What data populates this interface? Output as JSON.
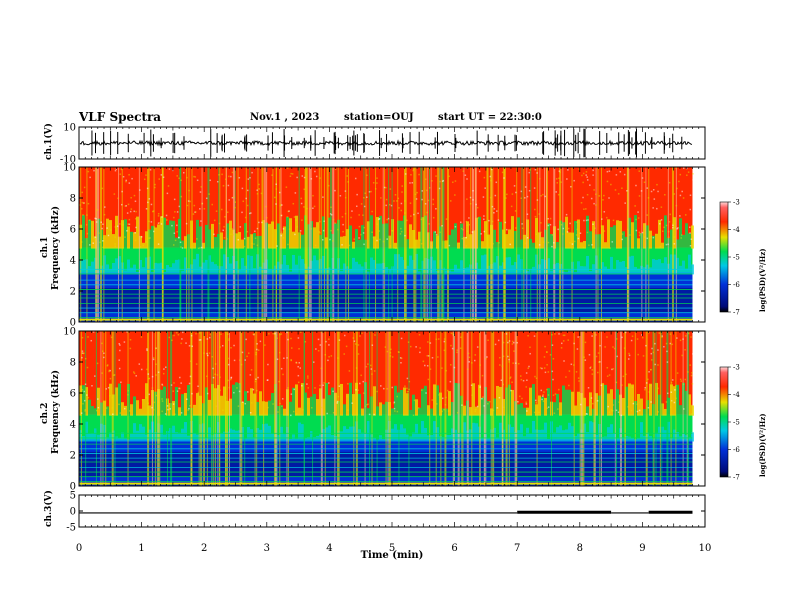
{
  "header": {
    "title": "VLF Spectra",
    "date": "Nov.1 , 2023",
    "station": "station=OUJ",
    "start": "start UT = 22:30:0"
  },
  "colors": {
    "red": "#ff2a00",
    "yellow": "#e8e000",
    "green": "#00dc50",
    "cyan": "#00c8e6",
    "blue": "#0030d8",
    "navy": "#000a78",
    "trace": "#000000"
  },
  "chart_data": [
    {
      "id": "ch1-waveform",
      "type": "line",
      "ylabel": "ch.1(V)",
      "xlim": [
        0,
        10
      ],
      "ylim": [
        -10,
        10
      ],
      "yticks": [
        "10",
        "-10"
      ],
      "trace_level_v": 0,
      "trace_spread_v": 2.5,
      "trace_end_min": 9.8
    },
    {
      "id": "ch1-spectrogram",
      "type": "heatmap",
      "ylabel": [
        "ch.1",
        "Frequency (kHz)"
      ],
      "xlim": [
        0,
        10
      ],
      "ylim": [
        0,
        10
      ],
      "yticks": [
        "0",
        "2",
        "4",
        "6",
        "8",
        "10"
      ],
      "data_end_min": 9.8,
      "colorbar": {
        "label": "log(PSD)(V²/Hz)",
        "ticks": [
          "-3",
          "-4",
          "-5",
          "-6",
          "-7"
        ],
        "range": [
          -7,
          -3
        ]
      },
      "approx_band_khz": {
        "blue_top": 3.2,
        "green_top": 4.8
      }
    },
    {
      "id": "ch2-spectrogram",
      "type": "heatmap",
      "ylabel": [
        "ch.2",
        "Frequency (kHz)"
      ],
      "xlim": [
        0,
        10
      ],
      "ylim": [
        0,
        10
      ],
      "yticks": [
        "0",
        "2",
        "4",
        "6",
        "8",
        "10"
      ],
      "data_end_min": 9.8,
      "colorbar": {
        "label": "log(PSD)(V²/Hz)",
        "ticks": [
          "-3",
          "-4",
          "-5",
          "-6",
          "-7"
        ],
        "range": [
          -7,
          -3
        ]
      },
      "approx_band_khz": {
        "blue_top": 3.0,
        "green_top": 4.6
      }
    },
    {
      "id": "ch3-signal",
      "type": "line",
      "ylabel": "ch.3(V)",
      "xlim": [
        0,
        10
      ],
      "ylim": [
        -5,
        5
      ],
      "yticks": [
        "5",
        "0",
        "-5"
      ],
      "xlabel": "Time (min)",
      "xticks": [
        "0",
        "1",
        "2",
        "3",
        "4",
        "5",
        "6",
        "7",
        "8",
        "9",
        "10"
      ],
      "segments": [
        {
          "x": [
            0,
            7.0
          ],
          "y": -0.6,
          "thick": false
        },
        {
          "x": [
            7.0,
            8.5
          ],
          "y": -0.4,
          "thick": true
        },
        {
          "x": [
            8.5,
            9.1
          ],
          "y": -0.6,
          "thick": false
        },
        {
          "x": [
            9.1,
            9.8
          ],
          "y": -0.4,
          "thick": true
        }
      ]
    }
  ]
}
